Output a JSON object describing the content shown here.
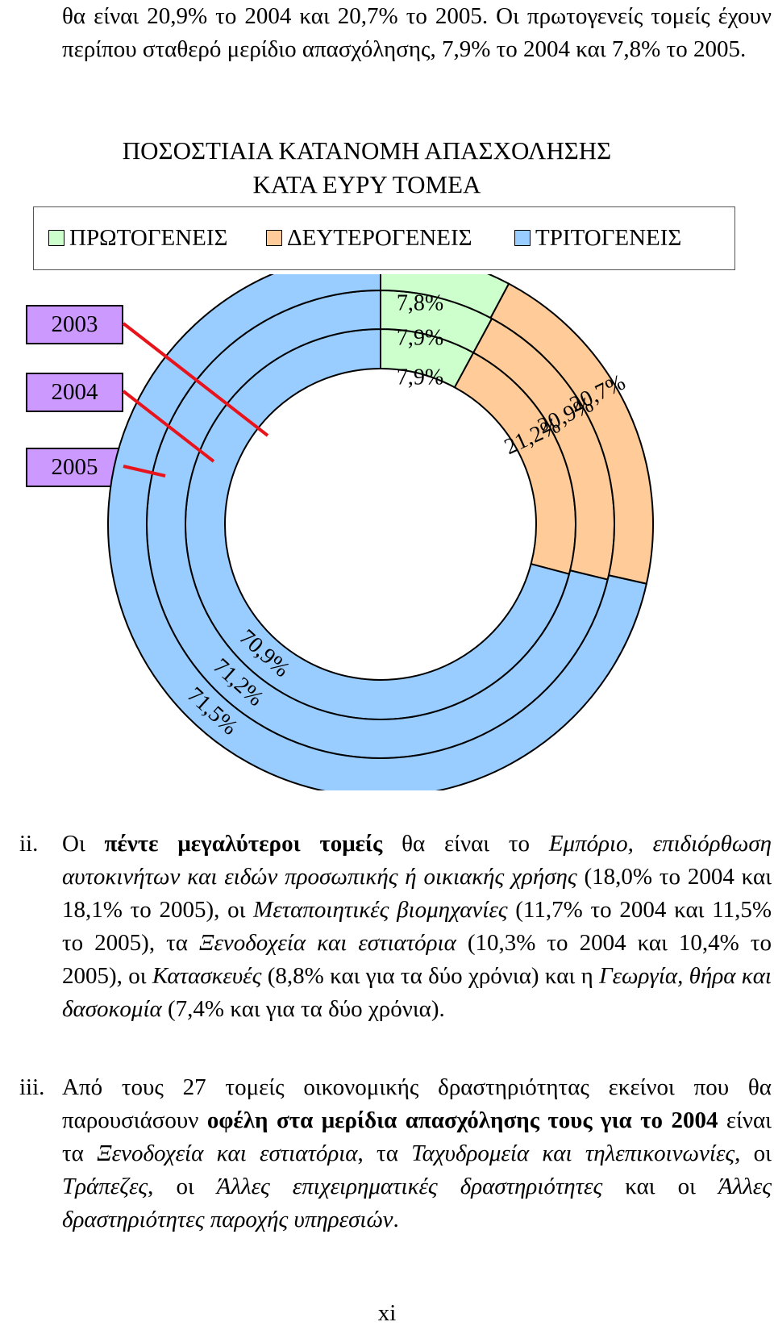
{
  "intro": {
    "line1": "θα είναι 20,9% το 2004 και 20,7% το 2005. Οι πρωτογενείς τομείς έχουν περίπου σταθερό μερίδιο απασχόλησης, 7,9% το 2004 και 7,8% το 2005."
  },
  "chart_data": {
    "type": "donut",
    "title_line1": "ΠΟΣΟΣΤΙΑΙΑ ΚΑΤΑΝΟΜΗ ΑΠΑΣΧΟΛΗΣΗΣ",
    "title_line2": "ΚΑΤΑ ΕΥΡΥ ΤΟΜΕΑ",
    "categories": [
      "ΠΡΩΤΟΓΕΝΕΙΣ",
      "ΔΕΥΤΕΡΟΓΕΝΕΙΣ",
      "ΤΡΙΤΟΓΕΝΕΙΣ"
    ],
    "colors": [
      "#ccffcc",
      "#ffcc99",
      "#99ccff"
    ],
    "series": [
      {
        "name": "2003",
        "values": [
          7.9,
          21.2,
          70.9
        ],
        "labels": [
          "7,9%",
          "21,2%",
          "70,9%"
        ]
      },
      {
        "name": "2004",
        "values": [
          7.9,
          20.9,
          71.2
        ],
        "labels": [
          "7,9%",
          "20,9%",
          "71,2%"
        ]
      },
      {
        "name": "2005",
        "values": [
          7.8,
          20.7,
          71.5
        ],
        "labels": [
          "7,8%",
          "20,7%",
          "71,5%"
        ]
      }
    ],
    "year_box_color": "#cc99ff",
    "leader_color": "#e8141c"
  },
  "items": [
    {
      "num": "ii.",
      "html": "Οι <b>πέντε μεγαλύτεροι τομείς</b> θα είναι το <i>Εμπόριο, επιδιόρθωση αυτοκινήτων και ειδών προσωπικής ή οικιακής χρήσης</i> (18,0% το 2004 και 18,1% το 2005), οι <i>Μεταποιητικές βιομηχανίες</i> (11,7% το 2004 και 11,5% το 2005), τα <i>Ξενοδοχεία και εστιατόρια</i> (10,3% το 2004 και 10,4% το 2005), οι <i>Κατασκευές</i> (8,8% και για τα δύο χρόνια) και η <i>Γεωργία, θήρα και δασοκομία</i> (7,4% και για τα δύο χρόνια)."
    },
    {
      "num": "iii.",
      "html": "Από τους 27 τομείς οικονομικής δραστηριότητας εκείνοι που θα παρουσιάσουν <b>οφέλη στα μερίδια απασχόλησης τους για το 2004</b> είναι τα <i>Ξενοδοχεία και εστιατόρια</i>, τα <i>Ταχυδρομεία και τηλεπικοινωνίες</i>, οι <i>Τράπεζες</i>, οι <i>Άλλες επιχειρηματικές δραστηριότητες</i> και οι <i>Άλλες δραστηριότητες παροχής υπηρεσιών</i>."
    }
  ],
  "footer": {
    "page_number": "xi"
  }
}
